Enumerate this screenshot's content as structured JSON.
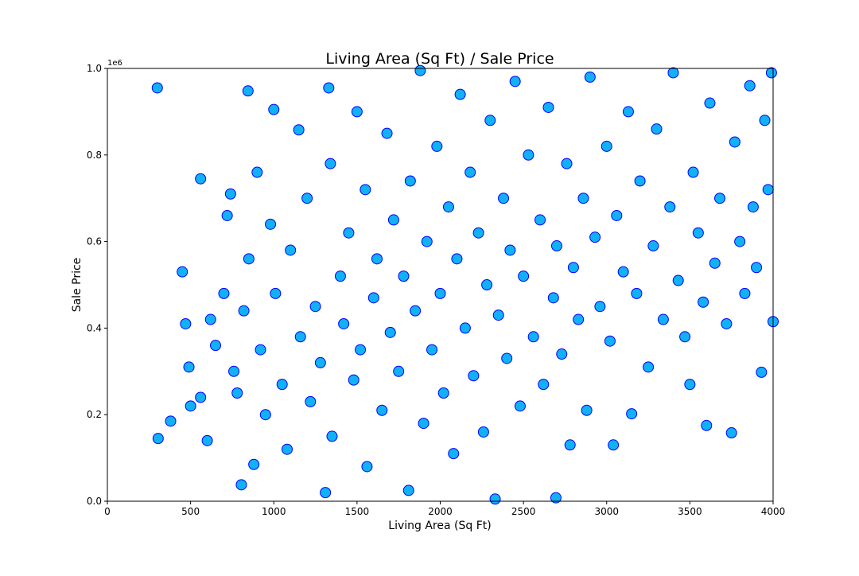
{
  "chart_data": {
    "type": "scatter",
    "title": "Living Area (Sq Ft) / Sale Price",
    "x_label": "Living Area (Sq Ft)",
    "y_label": "Sale Price",
    "y_offset_label": "1e6",
    "color": "#12b0f5",
    "edge_color": "#0000ff",
    "xlim": [
      0,
      4000
    ],
    "xticks": [
      0,
      500,
      1000,
      1500,
      2000,
      2500,
      3000,
      3500,
      4000
    ],
    "ylim": [
      0,
      1000000
    ],
    "yticks": [
      {
        "value": 0,
        "label": "0.0"
      },
      {
        "value": 200000,
        "label": "0.2"
      },
      {
        "value": 400000,
        "label": "0.4"
      },
      {
        "value": 600000,
        "label": "0.6"
      },
      {
        "value": 800000,
        "label": "0.8"
      },
      {
        "value": 1000000,
        "label": "1.0"
      }
    ],
    "x": [
      300,
      305,
      380,
      450,
      470,
      490,
      500,
      560,
      560,
      600,
      620,
      650,
      700,
      720,
      740,
      760,
      780,
      805,
      820,
      845,
      850,
      880,
      900,
      920,
      950,
      980,
      1000,
      1010,
      1050,
      1080,
      1100,
      1150,
      1160,
      1200,
      1220,
      1250,
      1280,
      1310,
      1330,
      1340,
      1350,
      1400,
      1420,
      1450,
      1480,
      1500,
      1520,
      1550,
      1560,
      1600,
      1620,
      1650,
      1680,
      1700,
      1720,
      1750,
      1780,
      1810,
      1820,
      1850,
      1880,
      1900,
      1920,
      1950,
      1980,
      2000,
      2020,
      2050,
      2080,
      2100,
      2120,
      2150,
      2180,
      2200,
      2230,
      2260,
      2280,
      2300,
      2330,
      2350,
      2380,
      2400,
      2420,
      2450,
      2480,
      2500,
      2530,
      2560,
      2600,
      2620,
      2650,
      2680,
      2695,
      2700,
      2730,
      2760,
      2780,
      2800,
      2830,
      2860,
      2880,
      2900,
      2930,
      2960,
      3000,
      3020,
      3040,
      3060,
      3100,
      3130,
      3150,
      3180,
      3200,
      3250,
      3280,
      3300,
      3340,
      3380,
      3400,
      3430,
      3470,
      3500,
      3520,
      3550,
      3580,
      3600,
      3620,
      3650,
      3680,
      3720,
      3750,
      3770,
      3800,
      3830,
      3860,
      3880,
      3900,
      3930,
      3950,
      3970,
      4000,
      3990
    ],
    "values": [
      955000,
      145000,
      185000,
      530000,
      410000,
      310000,
      220000,
      745000,
      240000,
      140000,
      420000,
      360000,
      480000,
      660000,
      710000,
      300000,
      250000,
      38000,
      440000,
      948000,
      560000,
      85000,
      760000,
      350000,
      200000,
      640000,
      905000,
      480000,
      270000,
      120000,
      580000,
      858000,
      380000,
      700000,
      230000,
      450000,
      320000,
      20000,
      955000,
      780000,
      150000,
      520000,
      410000,
      620000,
      280000,
      900000,
      350000,
      720000,
      80000,
      470000,
      560000,
      210000,
      850000,
      390000,
      650000,
      300000,
      520000,
      25000,
      740000,
      440000,
      995000,
      180000,
      600000,
      350000,
      820000,
      480000,
      250000,
      680000,
      110000,
      560000,
      940000,
      400000,
      760000,
      290000,
      620000,
      160000,
      500000,
      880000,
      5000,
      430000,
      700000,
      330000,
      580000,
      970000,
      220000,
      520000,
      800000,
      380000,
      650000,
      270000,
      910000,
      470000,
      8000,
      590000,
      340000,
      780000,
      130000,
      540000,
      420000,
      700000,
      210000,
      980000,
      610000,
      450000,
      820000,
      370000,
      130000,
      660000,
      530000,
      900000,
      202000,
      480000,
      740000,
      310000,
      590000,
      860000,
      420000,
      680000,
      990000,
      510000,
      380000,
      270000,
      760000,
      620000,
      460000,
      175000,
      920000,
      550000,
      700000,
      410000,
      158000,
      830000,
      600000,
      480000,
      960000,
      680000,
      540000,
      298000,
      880000,
      720000,
      415000,
      990000
    ]
  }
}
